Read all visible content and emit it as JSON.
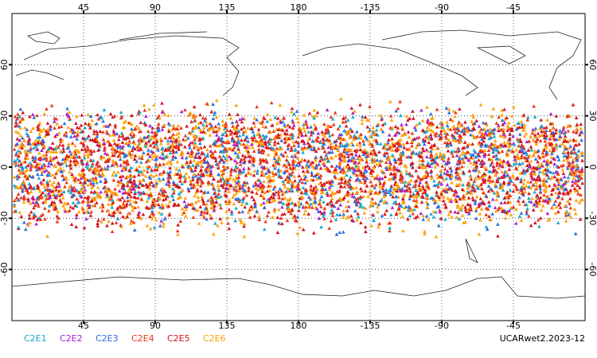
{
  "map": {
    "xlim": [
      0,
      360
    ],
    "ylim": [
      -90,
      90
    ],
    "xticks": [
      45,
      90,
      135,
      180,
      {
        "value": 225,
        "label": "-135"
      },
      {
        "value": 270,
        "label": "-90"
      },
      {
        "value": 315,
        "label": "-45"
      }
    ],
    "yticks": [
      60,
      30,
      0,
      -30,
      -60
    ],
    "grid": true,
    "series": [
      {
        "name": "C2E1",
        "color": "#19a9c9"
      },
      {
        "name": "C2E2",
        "color": "#a322d6"
      },
      {
        "name": "C2E3",
        "color": "#2a6fe0"
      },
      {
        "name": "C2E4",
        "color": "#e8361c"
      },
      {
        "name": "C2E5",
        "color": "#d2141e"
      },
      {
        "name": "C2E6",
        "color": "#ffa20a"
      }
    ],
    "label": "UCARwet2.2023-12"
  }
}
